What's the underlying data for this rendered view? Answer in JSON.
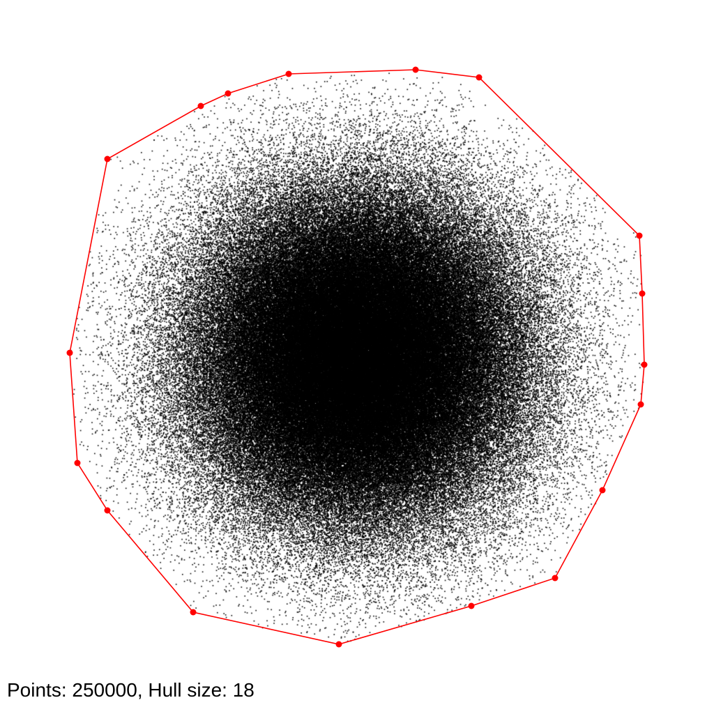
{
  "caption": "Points: 250000, Hull size: 18",
  "colors": {
    "points": "#000000",
    "hull": "#ff0000",
    "background": "#ffffff"
  },
  "chart_data": {
    "type": "scatter",
    "title": "",
    "xlabel": "",
    "ylabel": "",
    "grid": false,
    "point_count": 250000,
    "hull_size": 18,
    "hull_vertices": [
      [
        414,
        106
      ],
      [
        596,
        100
      ],
      [
        687,
        111
      ],
      [
        917,
        338
      ],
      [
        921,
        421
      ],
      [
        924,
        523
      ],
      [
        919,
        580
      ],
      [
        864,
        703
      ],
      [
        796,
        829
      ],
      [
        676,
        869
      ],
      [
        486,
        924
      ],
      [
        277,
        878
      ],
      [
        154,
        732
      ],
      [
        111,
        664
      ],
      [
        100,
        506
      ],
      [
        154,
        228
      ],
      [
        288,
        152
      ],
      [
        327,
        134
      ]
    ]
  }
}
